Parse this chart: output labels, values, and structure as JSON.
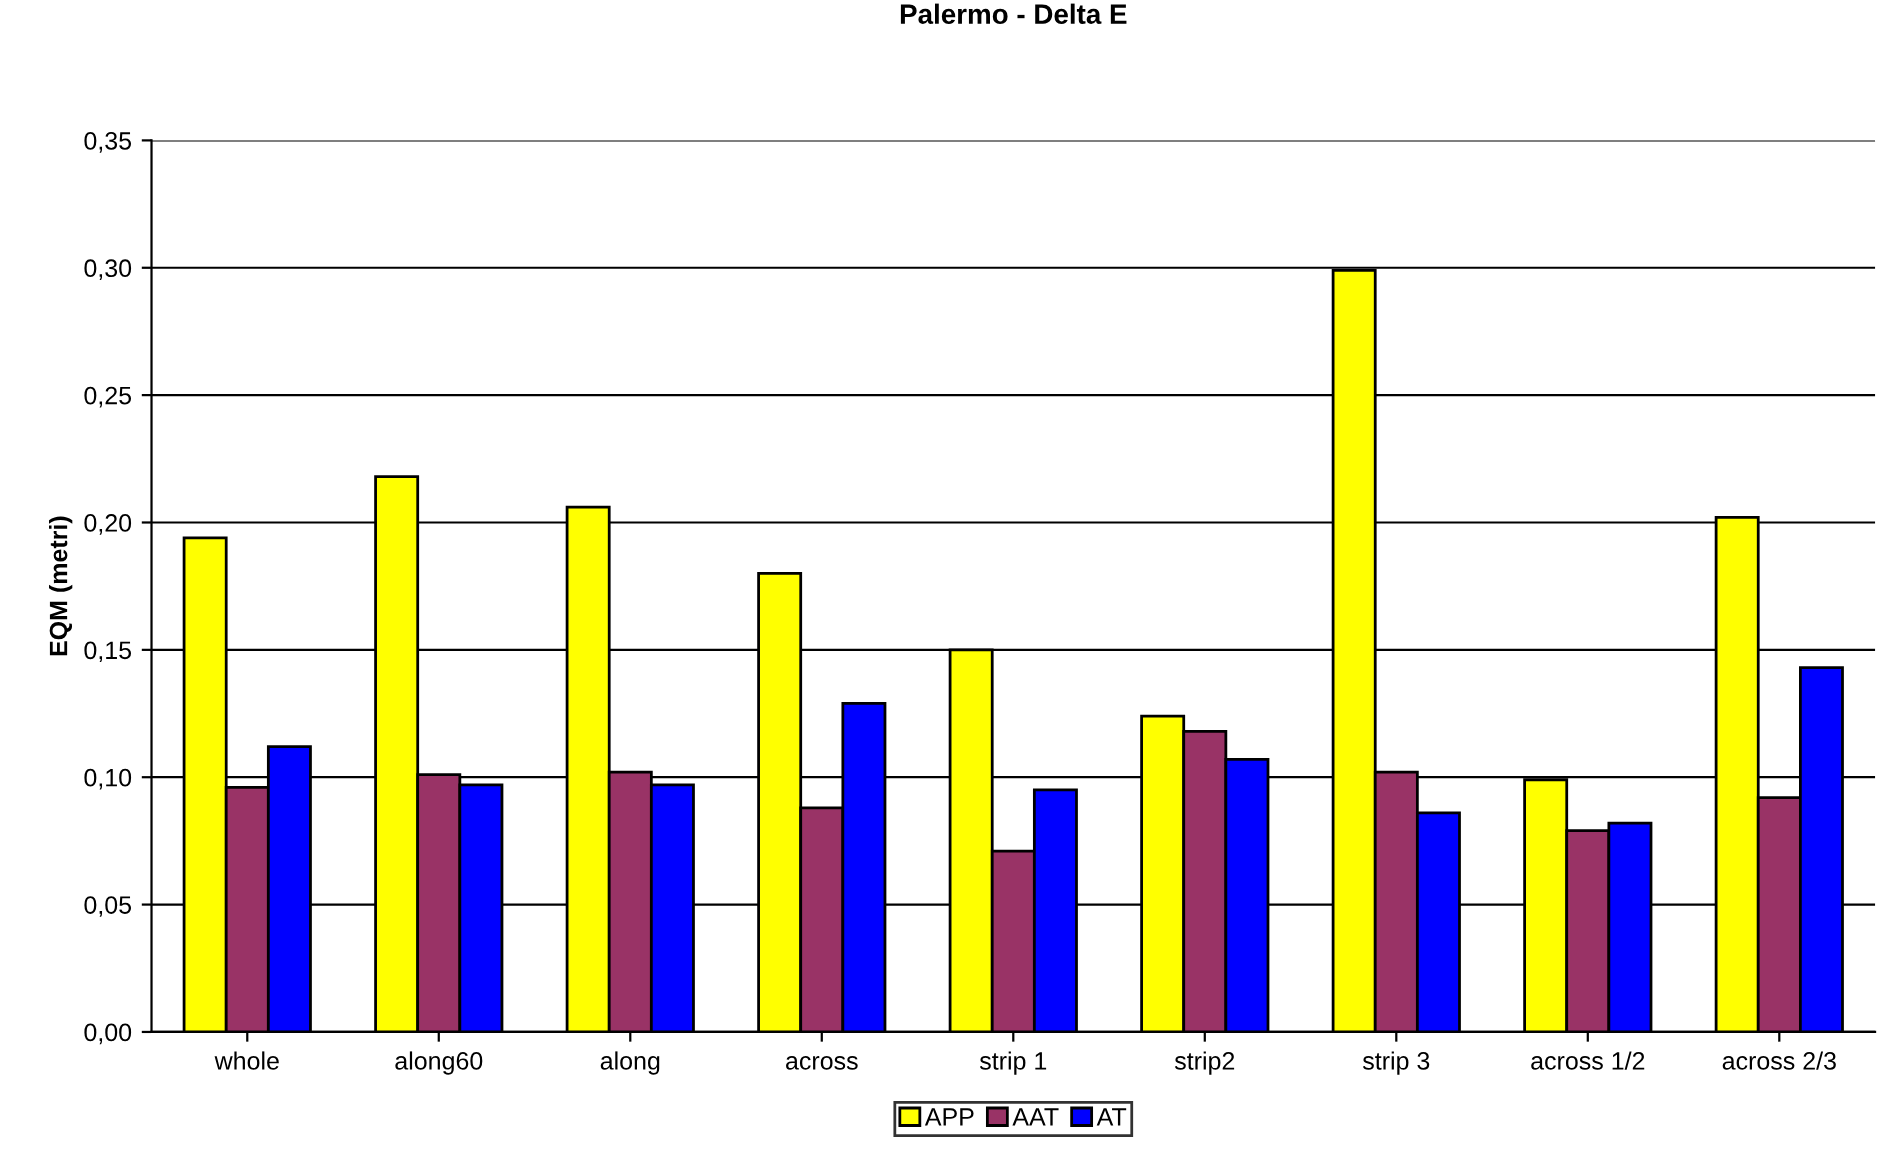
{
  "chart_data": {
    "type": "bar",
    "title": "Palermo - Delta E",
    "ylabel": "EQM (metri)",
    "categories": [
      "whole",
      "along60",
      "along",
      "across",
      "strip 1",
      "strip2",
      "strip 3",
      "across 1/2",
      "across 2/3"
    ],
    "series": [
      {
        "name": "APP",
        "color": "#ffff00",
        "values": [
          0.194,
          0.218,
          0.206,
          0.18,
          0.15,
          0.124,
          0.299,
          0.099,
          0.202
        ]
      },
      {
        "name": "AAT",
        "color": "#993366",
        "values": [
          0.096,
          0.101,
          0.102,
          0.088,
          0.071,
          0.118,
          0.102,
          0.079,
          0.092
        ]
      },
      {
        "name": "AT",
        "color": "#0000ff",
        "values": [
          0.112,
          0.097,
          0.097,
          0.129,
          0.095,
          0.107,
          0.086,
          0.082,
          0.143
        ]
      }
    ],
    "ylim": [
      0,
      0.35
    ],
    "yticks": [
      {
        "value": 0,
        "label": "0,00"
      },
      {
        "value": 0.05,
        "label": "0,05"
      },
      {
        "value": 0.1,
        "label": "0,10"
      },
      {
        "value": 0.15,
        "label": "0,15"
      },
      {
        "value": 0.2,
        "label": "0,20"
      },
      {
        "value": 0.25,
        "label": "0,25"
      },
      {
        "value": 0.3,
        "label": "0,30"
      },
      {
        "value": 0.35,
        "label": "0,35"
      }
    ],
    "grid": "y",
    "legend": "bottom"
  }
}
